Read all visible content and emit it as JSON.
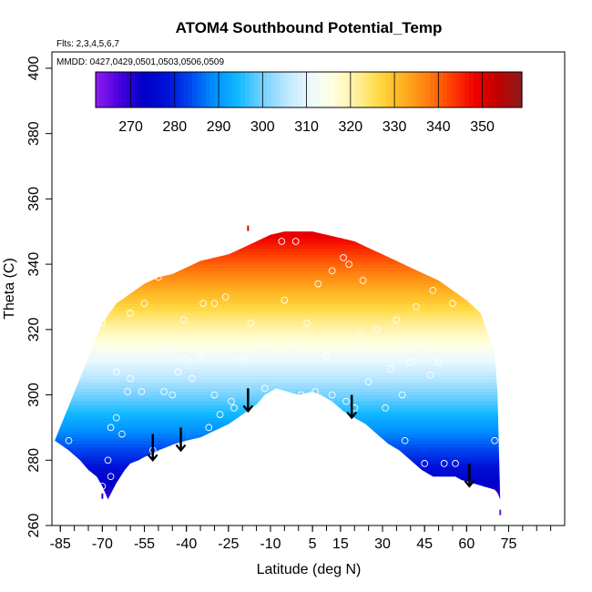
{
  "chart_data": {
    "type": "heatmap",
    "title": "ATOM4 Southbound Potential_Temp",
    "flights_text": "Flts: 2,3,4,5,6,7",
    "dates_text": "MMDD: 0427,0429,0501,0503,0506,0509",
    "xlabel": "Latitude (deg N)",
    "ylabel": "Theta (C)",
    "xlim": [
      -88,
      95
    ],
    "ylim": [
      260,
      405
    ],
    "x_ticks": [
      -85,
      -70,
      -55,
      -40,
      -25,
      -10,
      5,
      15,
      30,
      45,
      60,
      75
    ],
    "x_minor_step": 5,
    "y_ticks": [
      260,
      280,
      300,
      320,
      340,
      360,
      380,
      400
    ],
    "colorbar": {
      "min": 262,
      "max": 359,
      "ticks": [
        270,
        280,
        290,
        300,
        310,
        320,
        330,
        340,
        350
      ],
      "colors": [
        "#8f1cf0",
        "#4b00e0",
        "#0000c8",
        "#0010d8",
        "#0048f0",
        "#0090ff",
        "#10b8ff",
        "#70d0ff",
        "#b8e6ff",
        "#eaf8ff",
        "#ffffe0",
        "#fff0a0",
        "#ffd840",
        "#ffb020",
        "#ff8010",
        "#ff4000",
        "#f00000",
        "#c00000",
        "#8c1c1c"
      ]
    },
    "field": {
      "lat_range": [
        -88,
        74
      ],
      "theta_range": [
        262,
        352
      ],
      "value_model": "value equals theta",
      "upper_edge": {
        "lat": [
          -70,
          -65,
          -60,
          -55,
          -50,
          -45,
          -40,
          -35,
          -30,
          -25,
          -20,
          -15,
          -10,
          -5,
          0,
          5,
          10,
          15,
          20,
          25,
          30,
          35,
          40,
          45,
          50,
          55,
          60,
          65,
          70,
          71
        ],
        "theta": [
          322,
          328,
          331,
          334,
          336,
          337,
          339,
          341,
          342,
          343,
          345,
          347,
          349,
          350,
          350,
          350,
          349,
          348,
          347,
          345,
          343,
          341,
          339,
          337,
          335,
          332,
          329,
          325,
          313,
          301
        ]
      },
      "lower_edge": {
        "lat": [
          -87,
          -82,
          -78,
          -75,
          -72,
          -70,
          -68,
          -65,
          -62,
          -60,
          -57,
          -55,
          -52,
          -50,
          -47,
          -44,
          -40,
          -35,
          -30,
          -25,
          -20,
          -15,
          -12,
          -8,
          -4,
          0,
          5,
          8,
          12,
          16,
          20,
          24,
          28,
          32,
          36,
          40,
          44,
          48,
          52,
          56,
          58,
          62,
          66,
          70,
          71,
          72
        ],
        "theta": [
          286,
          283,
          280,
          277,
          275,
          272,
          268,
          273,
          277,
          279,
          280,
          281,
          282,
          283,
          284,
          285,
          286,
          287,
          289,
          291,
          294,
          297,
          300,
          302,
          301,
          300,
          301,
          300,
          298,
          295,
          293,
          291,
          288,
          285,
          283,
          280,
          277,
          275,
          275,
          275,
          274,
          273,
          272,
          271,
          270,
          268
        ]
      }
    },
    "observations": [
      {
        "lat": -82,
        "theta": 286
      },
      {
        "lat": -70,
        "theta": 272
      },
      {
        "lat": -67,
        "theta": 275
      },
      {
        "lat": -67,
        "theta": 290
      },
      {
        "lat": -65,
        "theta": 293
      },
      {
        "lat": -63,
        "theta": 288
      },
      {
        "lat": -61,
        "theta": 301
      },
      {
        "lat": -56,
        "theta": 301
      },
      {
        "lat": -60,
        "theta": 305
      },
      {
        "lat": -65,
        "theta": 307
      },
      {
        "lat": -68,
        "theta": 280
      },
      {
        "lat": -52,
        "theta": 283
      },
      {
        "lat": -48,
        "theta": 301
      },
      {
        "lat": -45,
        "theta": 300
      },
      {
        "lat": -43,
        "theta": 307
      },
      {
        "lat": -38,
        "theta": 305
      },
      {
        "lat": -32,
        "theta": 290
      },
      {
        "lat": -28,
        "theta": 294
      },
      {
        "lat": -23,
        "theta": 296
      },
      {
        "lat": -12,
        "theta": 302
      },
      {
        "lat": 1,
        "theta": 300
      },
      {
        "lat": 6,
        "theta": 301
      },
      {
        "lat": 12,
        "theta": 300
      },
      {
        "lat": 17,
        "theta": 298
      },
      {
        "lat": 20,
        "theta": 296
      },
      {
        "lat": 31,
        "theta": 296
      },
      {
        "lat": 38,
        "theta": 286
      },
      {
        "lat": 45,
        "theta": 279
      },
      {
        "lat": 52,
        "theta": 279
      },
      {
        "lat": 56,
        "theta": 279
      },
      {
        "lat": 47,
        "theta": 306
      },
      {
        "lat": 50,
        "theta": 310
      },
      {
        "lat": 37,
        "theta": 300
      },
      {
        "lat": 33,
        "theta": 308
      },
      {
        "lat": 40,
        "theta": 310
      },
      {
        "lat": 42,
        "theta": 327
      },
      {
        "lat": 48,
        "theta": 332
      },
      {
        "lat": 55,
        "theta": 328
      },
      {
        "lat": 61,
        "theta": 330
      },
      {
        "lat": 70,
        "theta": 286
      },
      {
        "lat": 23,
        "theta": 335
      },
      {
        "lat": 16,
        "theta": 342
      },
      {
        "lat": 18,
        "theta": 340
      },
      {
        "lat": 12,
        "theta": 338
      },
      {
        "lat": -1,
        "theta": 347
      },
      {
        "lat": -6,
        "theta": 347
      },
      {
        "lat": 7,
        "theta": 334
      },
      {
        "lat": 3,
        "theta": 322
      },
      {
        "lat": -5,
        "theta": 329
      },
      {
        "lat": -17,
        "theta": 322
      },
      {
        "lat": -26,
        "theta": 330
      },
      {
        "lat": -30,
        "theta": 328
      },
      {
        "lat": -34,
        "theta": 328
      },
      {
        "lat": -41,
        "theta": 323
      },
      {
        "lat": -50,
        "theta": 336
      },
      {
        "lat": -55,
        "theta": 328
      },
      {
        "lat": -60,
        "theta": 325
      },
      {
        "lat": -66,
        "theta": 331
      },
      {
        "lat": -70,
        "theta": 322
      },
      {
        "lat": -75,
        "theta": 322
      },
      {
        "lat": -45,
        "theta": 314
      },
      {
        "lat": -40,
        "theta": 311
      },
      {
        "lat": -35,
        "theta": 312
      },
      {
        "lat": -20,
        "theta": 311
      },
      {
        "lat": -12,
        "theta": 316
      },
      {
        "lat": 0,
        "theta": 315
      },
      {
        "lat": 10,
        "theta": 312
      },
      {
        "lat": 15,
        "theta": 313
      },
      {
        "lat": 22,
        "theta": 318
      },
      {
        "lat": 28,
        "theta": 320
      },
      {
        "lat": 35,
        "theta": 323
      },
      {
        "lat": 42,
        "theta": 315
      },
      {
        "lat": -30,
        "theta": 300
      },
      {
        "lat": -24,
        "theta": 298
      },
      {
        "lat": 25,
        "theta": 304
      }
    ],
    "arrows": [
      {
        "lat": -52,
        "theta_from": 288,
        "theta_to": 280
      },
      {
        "lat": -42,
        "theta_from": 290,
        "theta_to": 283
      },
      {
        "lat": -18,
        "theta_from": 302,
        "theta_to": 295
      },
      {
        "lat": 19,
        "theta_from": 300,
        "theta_to": 293
      },
      {
        "lat": 61,
        "theta_from": 279,
        "theta_to": 272
      }
    ],
    "tick_markers": [
      {
        "lat": -18,
        "theta": 351
      },
      {
        "lat": -70,
        "theta": 269
      },
      {
        "lat": 72,
        "theta": 264
      }
    ]
  }
}
